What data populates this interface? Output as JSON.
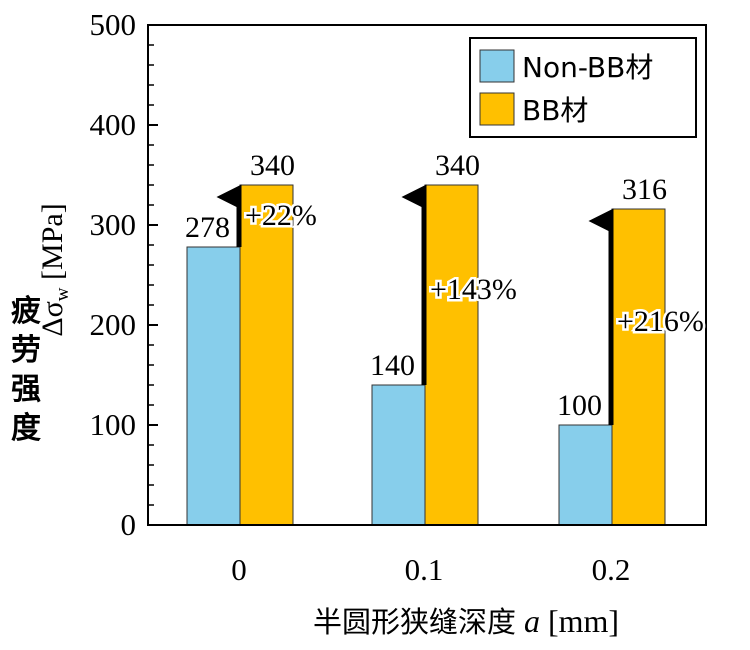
{
  "chart_data": {
    "type": "bar",
    "categories": [
      "0",
      "0.1",
      "0.2"
    ],
    "series": [
      {
        "name": "Non-BB材",
        "values": [
          278,
          140,
          100
        ],
        "color": "#87ceeb"
      },
      {
        "name": "BB材",
        "values": [
          340,
          340,
          316
        ],
        "color": "#ffc000"
      }
    ],
    "increase_labels": [
      "+22%",
      "+143%",
      "+216%"
    ],
    "ylim": [
      0,
      500
    ],
    "y_ticks": [
      0,
      100,
      200,
      300,
      400,
      500
    ],
    "ylabel_symbol": "Δσ",
    "ylabel_subscript": "w",
    "ylabel_unit": "[MPa]",
    "ylabel_cn": [
      "疲",
      "劳",
      "强",
      "度"
    ],
    "xlabel_cn": "半圆形狭缝深度",
    "xlabel_var": "a",
    "xlabel_unit": "[mm]",
    "legend_position": "top-right",
    "grid": false
  }
}
